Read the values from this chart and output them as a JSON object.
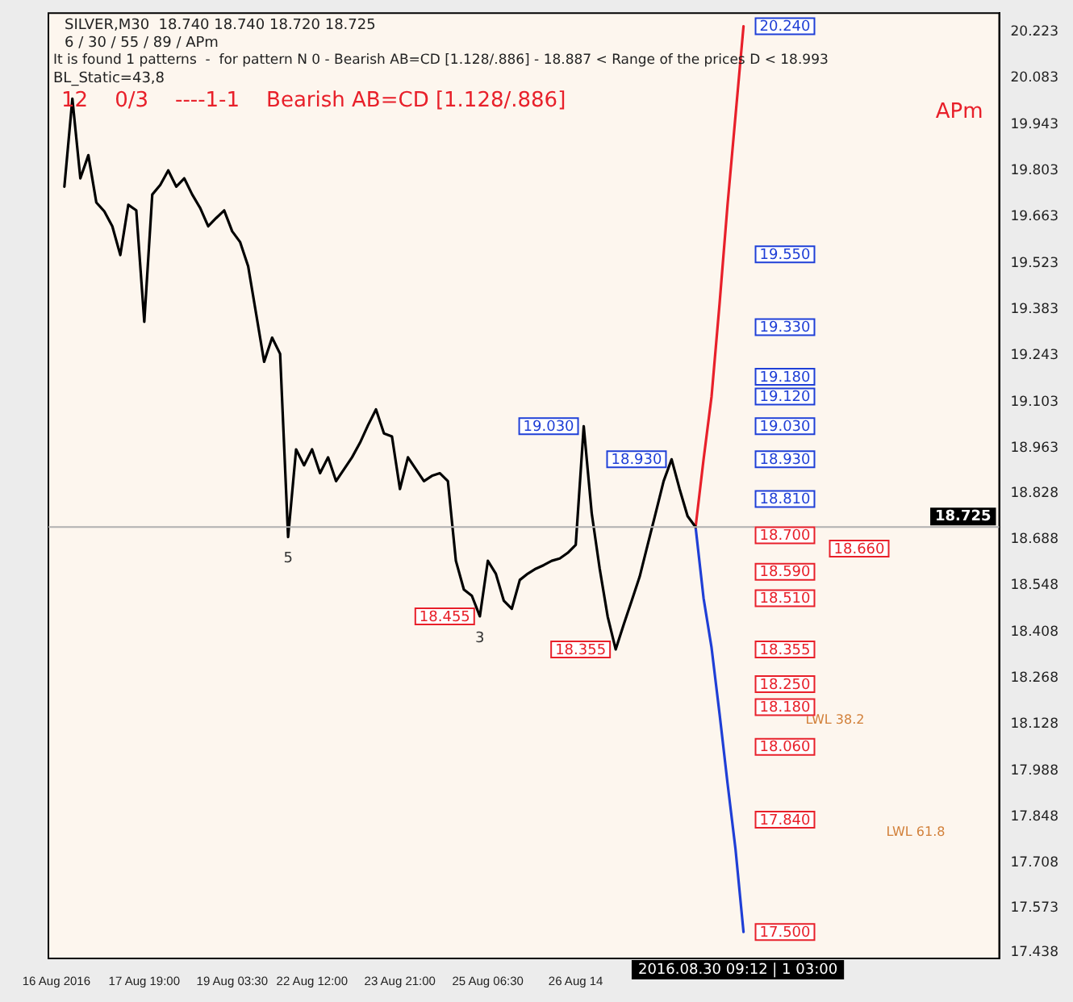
{
  "chart_data": {
    "type": "line",
    "title": "SILVER,M30  18.740 18.740 18.720 18.725",
    "subtitle": "6 / 30 / 55 / 89 / APm",
    "categories": [
      null,
      "16 Aug 2016",
      null,
      null,
      null,
      null,
      null,
      null,
      null,
      null,
      null,
      null,
      "17 Aug 19:00",
      null,
      null,
      null,
      null,
      null,
      null,
      null,
      null,
      null,
      null,
      "19 Aug 03:30",
      null,
      null,
      null,
      null,
      null,
      null,
      null,
      null,
      null,
      "22 Aug 12:00",
      null,
      null,
      null,
      null,
      null,
      null,
      null,
      null,
      null,
      null,
      "23 Aug 21:00",
      null,
      null,
      null,
      null,
      null,
      null,
      null,
      null,
      null,
      null,
      "25 Aug 06:30",
      null,
      null,
      null,
      null,
      null,
      null,
      null,
      null,
      null,
      null,
      "26 Aug 14",
      null,
      null,
      null,
      null,
      null,
      null,
      null,
      null,
      null,
      null,
      null,
      null,
      null,
      null,
      null,
      null,
      null,
      null,
      null,
      null,
      null,
      null,
      null,
      null,
      null,
      null,
      null,
      null,
      null,
      null,
      null,
      null,
      null,
      null,
      null,
      null,
      null,
      null,
      null,
      null,
      null,
      null,
      null,
      null,
      null,
      null,
      null,
      null,
      null,
      null,
      null,
      null,
      null
    ],
    "series": [
      {
        "color": "#000000",
        "values": [
          null,
          null,
          19.755,
          20.021,
          19.78,
          19.85,
          19.707,
          19.68,
          19.635,
          19.548,
          19.7,
          19.683,
          19.346,
          19.731,
          19.76,
          19.804,
          19.755,
          19.78,
          19.731,
          19.69,
          19.635,
          19.66,
          19.683,
          19.62,
          19.587,
          19.514,
          19.37,
          19.225,
          19.298,
          19.249,
          18.695,
          18.96,
          18.912,
          18.96,
          18.888,
          18.936,
          18.864,
          18.9,
          18.936,
          18.98,
          19.033,
          19.081,
          19.008,
          18.999,
          18.84,
          18.936,
          18.9,
          18.864,
          18.88,
          18.888,
          18.864,
          18.623,
          18.536,
          18.517,
          18.455,
          18.623,
          18.584,
          18.502,
          18.478,
          18.565,
          18.584,
          18.599,
          18.61,
          18.623,
          18.63,
          18.647,
          18.671,
          19.03,
          18.767,
          18.599,
          18.454,
          18.355,
          18.43,
          18.502,
          18.575,
          18.671,
          18.767,
          18.864,
          18.93,
          18.84,
          18.758,
          18.725,
          null,
          null,
          null,
          null,
          null,
          null,
          null,
          null,
          null,
          null,
          null,
          null,
          null,
          null,
          null,
          null,
          null,
          null,
          null,
          null,
          null,
          null,
          null,
          null,
          null,
          null,
          null,
          null,
          null,
          null,
          null,
          null,
          null,
          null,
          null,
          null,
          null,
          null
        ]
      },
      {
        "color": "#e8202a",
        "values": [
          null,
          null,
          null,
          null,
          null,
          null,
          null,
          null,
          null,
          null,
          null,
          null,
          null,
          null,
          null,
          null,
          null,
          null,
          null,
          null,
          null,
          null,
          null,
          null,
          null,
          null,
          null,
          null,
          null,
          null,
          null,
          null,
          null,
          null,
          null,
          null,
          null,
          null,
          null,
          null,
          null,
          null,
          null,
          null,
          null,
          null,
          null,
          null,
          null,
          null,
          null,
          null,
          null,
          null,
          null,
          null,
          null,
          null,
          null,
          null,
          null,
          null,
          null,
          null,
          null,
          null,
          null,
          null,
          null,
          null,
          null,
          null,
          null,
          null,
          null,
          null,
          null,
          null,
          null,
          null,
          null,
          18.725,
          18.93,
          19.12,
          19.4,
          19.7,
          19.97,
          20.24,
          null,
          null,
          null,
          null,
          null,
          null,
          null,
          null,
          null,
          null,
          null,
          null,
          null,
          null,
          null,
          null,
          null,
          null,
          null,
          null,
          null,
          null,
          null,
          null,
          null,
          null,
          null,
          null,
          null,
          null,
          null,
          null
        ]
      },
      {
        "color": "#1f3fd6",
        "values": [
          null,
          null,
          null,
          null,
          null,
          null,
          null,
          null,
          null,
          null,
          null,
          null,
          null,
          null,
          null,
          null,
          null,
          null,
          null,
          null,
          null,
          null,
          null,
          null,
          null,
          null,
          null,
          null,
          null,
          null,
          null,
          null,
          null,
          null,
          null,
          null,
          null,
          null,
          null,
          null,
          null,
          null,
          null,
          null,
          null,
          null,
          null,
          null,
          null,
          null,
          null,
          null,
          null,
          null,
          null,
          null,
          null,
          null,
          null,
          null,
          null,
          null,
          null,
          null,
          null,
          null,
          null,
          null,
          null,
          null,
          null,
          null,
          null,
          null,
          null,
          null,
          null,
          null,
          null,
          null,
          null,
          18.725,
          18.51,
          18.36,
          18.16,
          17.95,
          17.75,
          17.5,
          null,
          null,
          null,
          null,
          null,
          null,
          null,
          null,
          null,
          null,
          null,
          null,
          null,
          null,
          null,
          null,
          null,
          null,
          null,
          null,
          null,
          null,
          null,
          null,
          null,
          null,
          null,
          null,
          null,
          null,
          null,
          null
        ]
      }
    ],
    "ylim": [
      17.42,
      20.28
    ],
    "yticks": [
      17.438,
      17.573,
      17.708,
      17.848,
      17.988,
      18.128,
      18.268,
      18.408,
      18.548,
      18.688,
      18.828,
      18.963,
      19.103,
      19.243,
      19.383,
      19.523,
      19.663,
      19.803,
      19.943,
      20.083,
      20.223
    ],
    "marker": "none",
    "ref_lines": [
      {
        "axis": "y",
        "value": 18.725,
        "label": "18.725",
        "color": "#b0b0b0"
      }
    ],
    "annotations": [
      "It is found 1 patterns  -  for pattern N 0 - Bearish AB=CD [1.128/.886] - 18.887 < Range of the prices D < 18.993",
      "BL_Static=43,8",
      "12    0/3    ----1-1    Bearish AB=CD [1.128/.886]",
      "APm",
      "2016.08.30 09:12 | 1 03:00",
      "LWL 38.2",
      "LWL 61.8",
      "5",
      "3",
      "19.030",
      "18.930",
      "18.455",
      "18.355",
      "20.240",
      "19.550",
      "19.330",
      "19.180",
      "19.120",
      "19.030",
      "18.930",
      "18.810",
      "18.700",
      "18.660",
      "18.590",
      "18.510",
      "18.355",
      "18.250",
      "18.180",
      "18.060",
      "17.840",
      "17.500"
    ]
  }
}
